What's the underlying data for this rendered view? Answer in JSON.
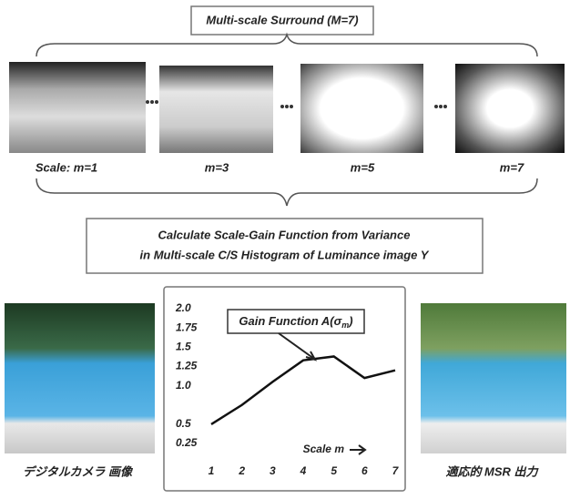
{
  "header": {
    "title": "Multi-scale Surround (M=7)"
  },
  "scale_labels": [
    "Scale: m=1",
    "m=3",
    "m=5",
    "m=7"
  ],
  "process_box": {
    "lines": [
      "Calculate Scale-Gain Function from Variance",
      "in Multi-scale C/S Histogram of Luminance image Y"
    ]
  },
  "chart_data": {
    "type": "line",
    "annotation": {
      "text": "Gain Function A(",
      "symbol": "σ",
      "subscript": "m",
      "end": ")"
    },
    "x_label": "Scale m",
    "x": [
      1,
      2,
      3,
      4,
      5,
      6,
      7
    ],
    "values": [
      0.5,
      0.75,
      1.05,
      1.33,
      1.38,
      1.1,
      1.2
    ],
    "color": "#111111",
    "xlim": [
      1,
      7
    ],
    "xticks": [
      1,
      2,
      3,
      4,
      5,
      6,
      7
    ],
    "ylim": [
      0,
      2
    ],
    "yticks": [
      {
        "value": 2,
        "label": "2.0"
      },
      1.75,
      1.5,
      1.25,
      {
        "value": 1,
        "label": "1.0"
      },
      0.5,
      0.25
    ]
  },
  "input_caption": "デジタルカメラ 画像",
  "output_caption": "適応的 MSR 出力"
}
